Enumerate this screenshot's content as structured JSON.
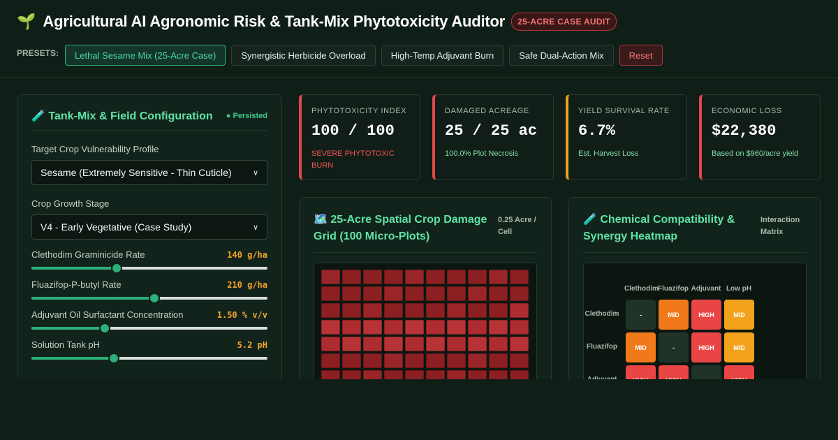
{
  "header": {
    "logo_icon": "🌱",
    "title": "Agricultural AI Agronomic Risk & Tank-Mix Phytotoxicity Auditor",
    "badge": "25-ACRE CASE AUDIT"
  },
  "presets": {
    "label": "PRESETS:",
    "items": [
      {
        "label": "Lethal Sesame Mix (25-Acre Case)"
      },
      {
        "label": "Synergistic Herbicide Overload"
      },
      {
        "label": "High-Temp Adjuvant Burn"
      },
      {
        "label": "Safe Dual-Action Mix"
      },
      {
        "label": "Reset"
      }
    ]
  },
  "config": {
    "title": "🧪 Tank-Mix & Field Configuration",
    "persisted": "● Persisted",
    "crop_label": "Target Crop Vulnerability Profile",
    "crop_value": "Sesame (Extremely Sensitive - Thin Cuticle)",
    "stage_label": "Crop Growth Stage",
    "stage_value": "V4 - Early Vegetative (Case Study)",
    "sliders": [
      {
        "label": "Clethodim Graminicide Rate",
        "value": "140 g/ha",
        "fraction": 0.36
      },
      {
        "label": "Fluazifop-P-butyl Rate",
        "value": "210 g/ha",
        "fraction": 0.52
      },
      {
        "label": "Adjuvant Oil Surfactant Concentration",
        "value": "1.50 % v/v",
        "fraction": 0.31
      },
      {
        "label": "Solution Tank pH",
        "value": "5.2 pH",
        "fraction": 0.35
      }
    ]
  },
  "stats": [
    {
      "label": "PHYTOTOXICITY INDEX",
      "value": "100 / 100",
      "sub": "SEVERE PHYTOTOXIC BURN",
      "accent": "#e04848",
      "sub_color": "#f25555"
    },
    {
      "label": "DAMAGED ACREAGE",
      "value": "25 / 25 ac",
      "sub": "100.0% Plot Necrosis",
      "accent": "#e04848",
      "sub_color": "#7fe0ad"
    },
    {
      "label": "YIELD SURVIVAL RATE",
      "value": "6.7%",
      "sub": "Est. Harvest Loss",
      "accent": "#e8a21c",
      "sub_color": "#7fe0ad"
    },
    {
      "label": "ECONOMIC LOSS",
      "value": "$22,380",
      "sub": "Based on $960/acre yield",
      "accent": "#e04848",
      "sub_color": "#7fe0ad"
    }
  ],
  "grid_panel": {
    "title": "🗺️ 25-Acre Spatial Crop Damage Grid (100 Micro-Plots)",
    "note": "0.25 Acre / Cell"
  },
  "heat_panel": {
    "title": "🧪 Chemical Compatibility & Synergy Heatmap",
    "note": "Interaction Matrix",
    "columns": [
      "Clethodim",
      "Fluazifop",
      "Adjuvant",
      "Low pH"
    ],
    "rows": [
      {
        "label": "Clethodim",
        "cells": [
          "-",
          "MID",
          "HIGH",
          "MID"
        ]
      },
      {
        "label": "Fluazifop",
        "cells": [
          "MID",
          "-",
          "HIGH",
          "MID"
        ]
      },
      {
        "label": "Adjuvant",
        "cells": [
          "HIGH",
          "HIGH",
          "-",
          "HIGH"
        ]
      }
    ]
  },
  "colors": {
    "accent": "#2bb07a",
    "danger": "#e04848",
    "warn": "#f2a52b"
  }
}
